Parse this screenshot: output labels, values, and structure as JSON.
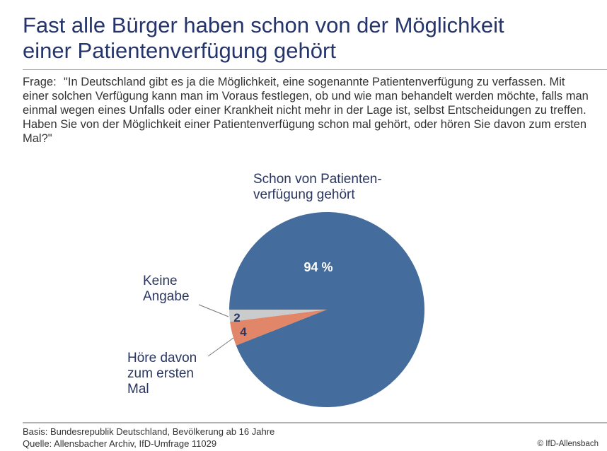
{
  "title_lines": [
    "Fast alle Bürger haben schon von der Möglichkeit",
    "einer Patientenverfügung gehört"
  ],
  "question": {
    "label": "Frage:",
    "text": "\"In Deutschland gibt es ja die Möglichkeit, eine sogenannte Patientenverfügung zu verfassen. Mit einer solchen Verfügung kann man im Voraus festlegen, ob und wie man behandelt werden möchte, falls man einmal wegen eines Unfalls oder einer Krankheit nicht mehr in der Lage ist, selbst Entscheidungen zu treffen. Haben Sie von der Möglichkeit einer Patientenverfügung schon mal gehört, oder hören Sie davon zum ersten Mal?\""
  },
  "chart_data": {
    "type": "pie",
    "unit": "%",
    "slices": [
      {
        "label": "Schon von Patienten-\nverfügung gehört",
        "label_lines": [
          "Schon von Patienten-",
          "verfügung gehört"
        ],
        "value": 94,
        "value_label": "94 %",
        "color": "#446c9c"
      },
      {
        "label": "Keine Angabe",
        "label_lines": [
          "Keine",
          "Angabe"
        ],
        "value": 2,
        "value_label": "2",
        "color": "#c9cbcd"
      },
      {
        "label": "Höre davon zum ersten Mal",
        "label_lines": [
          "Höre davon",
          "zum ersten",
          "Mal"
        ],
        "value": 4,
        "value_label": "4",
        "color": "#e2866a"
      }
    ]
  },
  "footer": {
    "basis": "Basis: Bundesrepublik Deutschland, Bevölkerung ab 16 Jahre",
    "source": "Quelle: Allensbacher Archiv, IfD-Umfrage 11029",
    "copyright": "© IfD-Allensbach"
  }
}
